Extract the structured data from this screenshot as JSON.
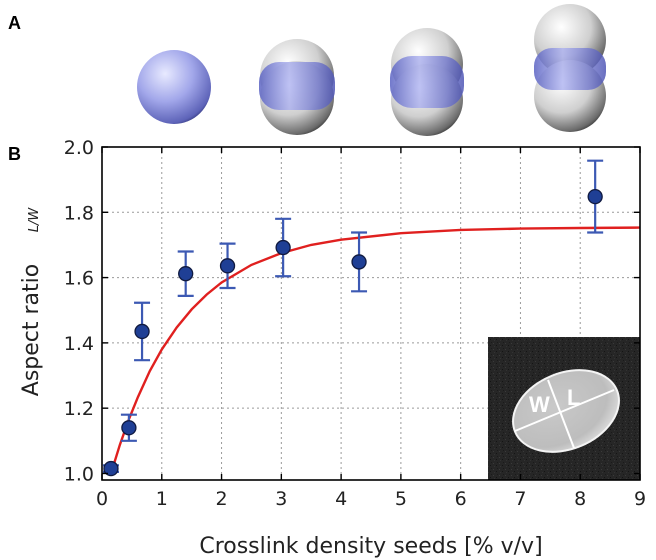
{
  "panels": {
    "a_label": "A",
    "b_label": "B"
  },
  "sem_inset": {
    "width_label": "W",
    "length_label": "L"
  },
  "chart_data": {
    "type": "scatter",
    "xlabel": "Crosslink density seeds [% v/v]",
    "ylabel": "Aspect ratio",
    "ylabel_sub": "L/W",
    "xlim": [
      0,
      9
    ],
    "ylim": [
      0.98,
      2.0
    ],
    "xticks": [
      0,
      1,
      2,
      3,
      4,
      5,
      6,
      7,
      8,
      9
    ],
    "yticks": [
      1.0,
      1.2,
      1.4,
      1.6,
      1.8,
      2.0
    ],
    "grid": true,
    "points": [
      {
        "x": 0.15,
        "y": 1.015,
        "err": 0.01
      },
      {
        "x": 0.45,
        "y": 1.14,
        "err": 0.04
      },
      {
        "x": 0.67,
        "y": 1.435,
        "err": 0.088
      },
      {
        "x": 1.4,
        "y": 1.612,
        "err": 0.068
      },
      {
        "x": 2.1,
        "y": 1.636,
        "err": 0.068
      },
      {
        "x": 3.03,
        "y": 1.692,
        "err": 0.088
      },
      {
        "x": 4.3,
        "y": 1.648,
        "err": 0.09
      },
      {
        "x": 8.25,
        "y": 1.848,
        "err": 0.11
      }
    ],
    "fit_curve": {
      "x": [
        0.15,
        0.3,
        0.45,
        0.6,
        0.8,
        1.0,
        1.25,
        1.5,
        1.75,
        2.0,
        2.5,
        3.0,
        3.5,
        4.0,
        5.0,
        6.0,
        7.0,
        8.0,
        9.0
      ],
      "y": [
        1.0,
        1.088,
        1.166,
        1.234,
        1.314,
        1.38,
        1.447,
        1.503,
        1.548,
        1.585,
        1.639,
        1.675,
        1.7,
        1.716,
        1.736,
        1.746,
        1.75,
        1.752,
        1.753
      ]
    },
    "colors": {
      "points": "#1f3f95",
      "point_edge": "#101a40",
      "errorbars": "#3c59b3",
      "fit": "#e0201f"
    }
  }
}
